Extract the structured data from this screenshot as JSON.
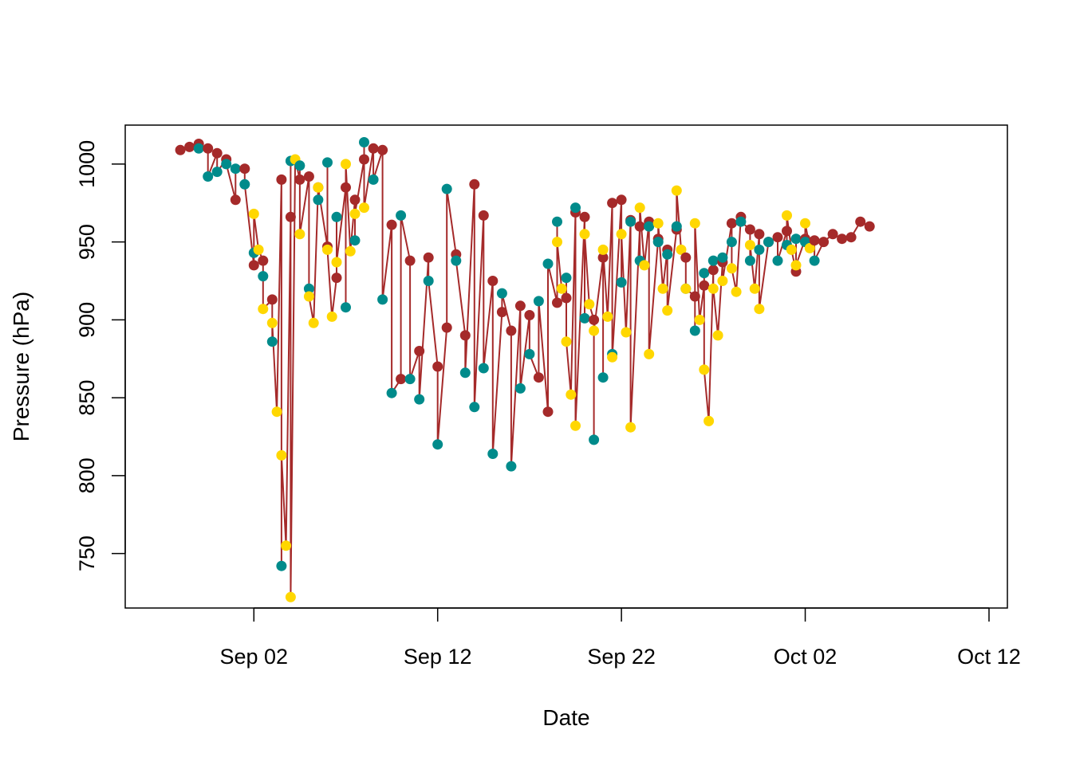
{
  "chart_data": {
    "type": "scatter",
    "title": "",
    "xlabel": "Date",
    "ylabel": "Pressure (hPa)",
    "x_type": "date",
    "xlim": [
      "2022-08-26",
      "2022-10-13"
    ],
    "ylim": [
      715,
      1025
    ],
    "x_ticks": [
      {
        "date": "2022-09-02",
        "label": "Sep 02"
      },
      {
        "date": "2022-09-12",
        "label": "Sep 12"
      },
      {
        "date": "2022-09-22",
        "label": "Sep 22"
      },
      {
        "date": "2022-10-02",
        "label": "Oct 02"
      },
      {
        "date": "2022-10-12",
        "label": "Oct 12"
      }
    ],
    "y_ticks": [
      750,
      800,
      850,
      900,
      950,
      1000
    ],
    "grid": false,
    "legend": "none",
    "colors": {
      "series_a": "#a52a2a",
      "series_b": "#008b8b",
      "series_c": "#ffd700",
      "connector": "#a52a2a"
    },
    "series": [
      {
        "color": "#a52a2a",
        "points": [
          [
            "2022-08-29T00:00",
            1009
          ],
          [
            "2022-08-29T12:00",
            1011
          ],
          [
            "2022-08-30T00:00",
            1013
          ],
          [
            "2022-08-30T12:00",
            1010
          ],
          [
            "2022-08-31T00:00",
            1007
          ],
          [
            "2022-08-31T12:00",
            1003
          ],
          [
            "2022-09-01T00:00",
            977
          ],
          [
            "2022-09-01T12:00",
            997
          ],
          [
            "2022-09-02T00:00",
            935
          ],
          [
            "2022-09-02T12:00",
            938
          ],
          [
            "2022-09-03T00:00",
            913
          ],
          [
            "2022-09-03T12:00",
            990
          ],
          [
            "2022-09-04T00:00",
            966
          ],
          [
            "2022-09-04T12:00",
            990
          ],
          [
            "2022-09-05T00:00",
            992
          ],
          [
            "2022-09-05T12:00",
            985
          ],
          [
            "2022-09-06T00:00",
            947
          ],
          [
            "2022-09-06T12:00",
            927
          ],
          [
            "2022-09-07T00:00",
            985
          ],
          [
            "2022-09-07T12:00",
            977
          ],
          [
            "2022-09-08T00:00",
            1003
          ],
          [
            "2022-09-08T12:00",
            1010
          ],
          [
            "2022-09-09T00:00",
            1009
          ],
          [
            "2022-09-09T12:00",
            961
          ],
          [
            "2022-09-10T00:00",
            862
          ],
          [
            "2022-09-10T12:00",
            938
          ],
          [
            "2022-09-11T00:00",
            880
          ],
          [
            "2022-09-11T12:00",
            940
          ],
          [
            "2022-09-12T00:00",
            870
          ],
          [
            "2022-09-12T12:00",
            895
          ],
          [
            "2022-09-13T00:00",
            942
          ],
          [
            "2022-09-13T12:00",
            890
          ],
          [
            "2022-09-14T00:00",
            987
          ],
          [
            "2022-09-14T12:00",
            967
          ],
          [
            "2022-09-15T00:00",
            925
          ],
          [
            "2022-09-15T12:00",
            905
          ],
          [
            "2022-09-16T00:00",
            893
          ],
          [
            "2022-09-16T12:00",
            909
          ],
          [
            "2022-09-17T00:00",
            903
          ],
          [
            "2022-09-17T12:00",
            863
          ],
          [
            "2022-09-18T00:00",
            841
          ],
          [
            "2022-09-18T12:00",
            911
          ],
          [
            "2022-09-19T00:00",
            914
          ],
          [
            "2022-09-19T12:00",
            969
          ],
          [
            "2022-09-20T00:00",
            966
          ],
          [
            "2022-09-20T12:00",
            900
          ],
          [
            "2022-09-21T00:00",
            940
          ],
          [
            "2022-09-21T12:00",
            975
          ],
          [
            "2022-09-22T00:00",
            977
          ],
          [
            "2022-09-22T12:00",
            964
          ],
          [
            "2022-09-23T00:00",
            960
          ],
          [
            "2022-09-23T12:00",
            963
          ],
          [
            "2022-09-24T00:00",
            952
          ],
          [
            "2022-09-24T12:00",
            945
          ],
          [
            "2022-09-25T00:00",
            958
          ],
          [
            "2022-09-25T12:00",
            940
          ],
          [
            "2022-09-26T00:00",
            915
          ],
          [
            "2022-09-26T12:00",
            922
          ],
          [
            "2022-09-27T00:00",
            932
          ],
          [
            "2022-09-27T12:00",
            937
          ],
          [
            "2022-09-28T00:00",
            962
          ],
          [
            "2022-09-28T12:00",
            966
          ],
          [
            "2022-09-29T00:00",
            958
          ],
          [
            "2022-09-29T12:00",
            955
          ],
          [
            "2022-09-30T00:00",
            950
          ],
          [
            "2022-09-30T12:00",
            953
          ],
          [
            "2022-10-01T00:00",
            957
          ],
          [
            "2022-10-01T12:00",
            931
          ],
          [
            "2022-10-02T00:00",
            952
          ],
          [
            "2022-10-02T12:00",
            951
          ],
          [
            "2022-10-03T00:00",
            950
          ],
          [
            "2022-10-03T12:00",
            955
          ],
          [
            "2022-10-04T00:00",
            952
          ],
          [
            "2022-10-04T12:00",
            953
          ],
          [
            "2022-10-05T00:00",
            963
          ],
          [
            "2022-10-05T12:00",
            960
          ]
        ]
      },
      {
        "color": "#008b8b",
        "points": [
          [
            "2022-08-30T00:00",
            1010
          ],
          [
            "2022-08-30T12:00",
            992
          ],
          [
            "2022-08-31T00:00",
            995
          ],
          [
            "2022-08-31T12:00",
            1000
          ],
          [
            "2022-09-01T00:00",
            997
          ],
          [
            "2022-09-01T12:00",
            987
          ],
          [
            "2022-09-02T00:00",
            943
          ],
          [
            "2022-09-02T12:00",
            928
          ],
          [
            "2022-09-03T00:00",
            886
          ],
          [
            "2022-09-03T12:00",
            742
          ],
          [
            "2022-09-04T00:00",
            1002
          ],
          [
            "2022-09-04T12:00",
            999
          ],
          [
            "2022-09-05T00:00",
            920
          ],
          [
            "2022-09-05T12:00",
            977
          ],
          [
            "2022-09-06T00:00",
            1001
          ],
          [
            "2022-09-06T12:00",
            966
          ],
          [
            "2022-09-07T00:00",
            908
          ],
          [
            "2022-09-07T12:00",
            951
          ],
          [
            "2022-09-08T00:00",
            1014
          ],
          [
            "2022-09-08T12:00",
            990
          ],
          [
            "2022-09-09T00:00",
            913
          ],
          [
            "2022-09-09T12:00",
            853
          ],
          [
            "2022-09-10T00:00",
            967
          ],
          [
            "2022-09-10T12:00",
            862
          ],
          [
            "2022-09-11T00:00",
            849
          ],
          [
            "2022-09-11T12:00",
            925
          ],
          [
            "2022-09-12T00:00",
            820
          ],
          [
            "2022-09-12T12:00",
            984
          ],
          [
            "2022-09-13T00:00",
            938
          ],
          [
            "2022-09-13T12:00",
            866
          ],
          [
            "2022-09-14T00:00",
            844
          ],
          [
            "2022-09-14T12:00",
            869
          ],
          [
            "2022-09-15T00:00",
            814
          ],
          [
            "2022-09-15T12:00",
            917
          ],
          [
            "2022-09-16T00:00",
            806
          ],
          [
            "2022-09-16T12:00",
            856
          ],
          [
            "2022-09-17T00:00",
            878
          ],
          [
            "2022-09-17T12:00",
            912
          ],
          [
            "2022-09-18T00:00",
            936
          ],
          [
            "2022-09-18T12:00",
            963
          ],
          [
            "2022-09-19T00:00",
            927
          ],
          [
            "2022-09-19T12:00",
            972
          ],
          [
            "2022-09-20T00:00",
            901
          ],
          [
            "2022-09-20T12:00",
            823
          ],
          [
            "2022-09-21T00:00",
            863
          ],
          [
            "2022-09-21T12:00",
            878
          ],
          [
            "2022-09-22T00:00",
            924
          ],
          [
            "2022-09-22T12:00",
            963
          ],
          [
            "2022-09-23T00:00",
            938
          ],
          [
            "2022-09-23T12:00",
            960
          ],
          [
            "2022-09-24T00:00",
            950
          ],
          [
            "2022-09-24T12:00",
            942
          ],
          [
            "2022-09-25T00:00",
            960
          ],
          [
            "2022-09-25T12:00",
            920
          ],
          [
            "2022-09-26T00:00",
            893
          ],
          [
            "2022-09-26T12:00",
            930
          ],
          [
            "2022-09-27T00:00",
            938
          ],
          [
            "2022-09-27T12:00",
            940
          ],
          [
            "2022-09-28T00:00",
            950
          ],
          [
            "2022-09-28T12:00",
            963
          ],
          [
            "2022-09-29T00:00",
            938
          ],
          [
            "2022-09-29T12:00",
            945
          ],
          [
            "2022-09-30T00:00",
            950
          ],
          [
            "2022-09-30T12:00",
            938
          ],
          [
            "2022-10-01T00:00",
            948
          ],
          [
            "2022-10-01T12:00",
            952
          ],
          [
            "2022-10-02T00:00",
            950
          ],
          [
            "2022-10-02T12:00",
            938
          ]
        ]
      },
      {
        "color": "#ffd700",
        "points": [
          [
            "2022-09-02T00:00",
            968
          ],
          [
            "2022-09-02T06:00",
            945
          ],
          [
            "2022-09-02T12:00",
            907
          ],
          [
            "2022-09-03T00:00",
            898
          ],
          [
            "2022-09-03T06:00",
            841
          ],
          [
            "2022-09-03T12:00",
            813
          ],
          [
            "2022-09-03T18:00",
            755
          ],
          [
            "2022-09-04T00:00",
            722
          ],
          [
            "2022-09-04T06:00",
            1003
          ],
          [
            "2022-09-04T12:00",
            955
          ],
          [
            "2022-09-05T00:00",
            915
          ],
          [
            "2022-09-05T06:00",
            898
          ],
          [
            "2022-09-05T12:00",
            985
          ],
          [
            "2022-09-06T00:00",
            945
          ],
          [
            "2022-09-06T06:00",
            902
          ],
          [
            "2022-09-06T12:00",
            937
          ],
          [
            "2022-09-07T00:00",
            1000
          ],
          [
            "2022-09-07T06:00",
            944
          ],
          [
            "2022-09-07T12:00",
            968
          ],
          [
            "2022-09-08T00:00",
            972
          ],
          [
            "2022-09-18T12:00",
            950
          ],
          [
            "2022-09-18T18:00",
            920
          ],
          [
            "2022-09-19T00:00",
            886
          ],
          [
            "2022-09-19T06:00",
            852
          ],
          [
            "2022-09-19T12:00",
            832
          ],
          [
            "2022-09-20T00:00",
            955
          ],
          [
            "2022-09-20T06:00",
            910
          ],
          [
            "2022-09-20T12:00",
            893
          ],
          [
            "2022-09-21T00:00",
            945
          ],
          [
            "2022-09-21T06:00",
            902
          ],
          [
            "2022-09-21T12:00",
            876
          ],
          [
            "2022-09-22T00:00",
            955
          ],
          [
            "2022-09-22T06:00",
            892
          ],
          [
            "2022-09-22T12:00",
            831
          ],
          [
            "2022-09-23T00:00",
            972
          ],
          [
            "2022-09-23T06:00",
            935
          ],
          [
            "2022-09-23T12:00",
            878
          ],
          [
            "2022-09-24T00:00",
            962
          ],
          [
            "2022-09-24T06:00",
            920
          ],
          [
            "2022-09-24T12:00",
            906
          ],
          [
            "2022-09-25T00:00",
            983
          ],
          [
            "2022-09-25T06:00",
            945
          ],
          [
            "2022-09-25T12:00",
            920
          ],
          [
            "2022-09-26T00:00",
            962
          ],
          [
            "2022-09-26T06:00",
            900
          ],
          [
            "2022-09-26T12:00",
            868
          ],
          [
            "2022-09-26T18:00",
            835
          ],
          [
            "2022-09-27T00:00",
            920
          ],
          [
            "2022-09-27T06:00",
            890
          ],
          [
            "2022-09-27T12:00",
            925
          ],
          [
            "2022-09-28T00:00",
            933
          ],
          [
            "2022-09-28T06:00",
            918
          ],
          [
            "2022-09-29T00:00",
            948
          ],
          [
            "2022-09-29T06:00",
            920
          ],
          [
            "2022-09-29T12:00",
            907
          ],
          [
            "2022-10-01T00:00",
            967
          ],
          [
            "2022-10-01T06:00",
            945
          ],
          [
            "2022-10-01T12:00",
            935
          ],
          [
            "2022-10-02T00:00",
            962
          ],
          [
            "2022-10-02T06:00",
            946
          ]
        ]
      }
    ]
  }
}
